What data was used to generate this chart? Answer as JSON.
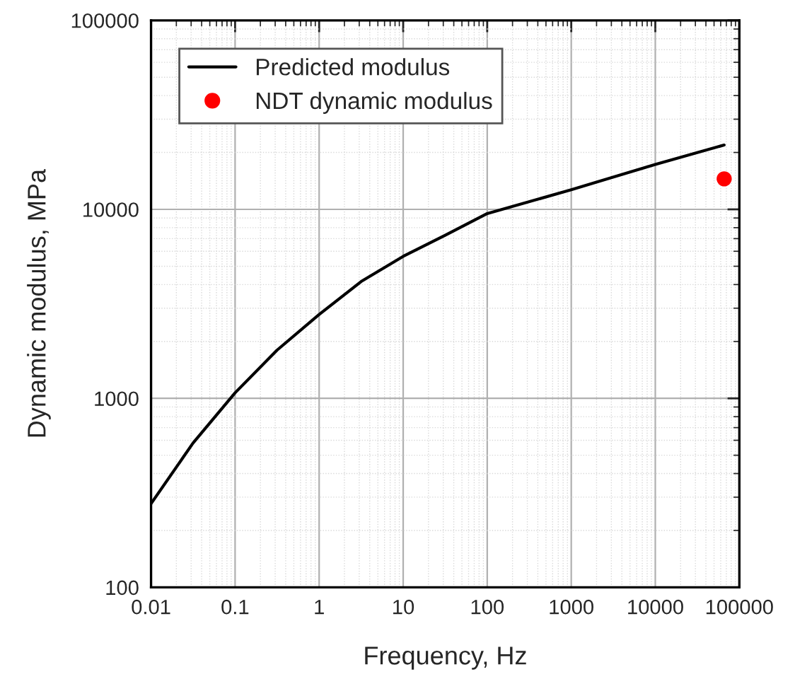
{
  "chart_data": {
    "type": "line",
    "xlabel": "Frequency, Hz",
    "ylabel": "Dynamic modulus, MPa",
    "log": "xy",
    "xlim": [
      0.01,
      100000
    ],
    "ylim": [
      100,
      100000
    ],
    "xticks": [
      0.01,
      0.1,
      1,
      10,
      100,
      1000,
      10000,
      100000
    ],
    "yticks": [
      100,
      1000,
      10000,
      100000
    ],
    "grid": true,
    "legend": "top left",
    "series": [
      {
        "name": "Predicted modulus",
        "color": "#000000",
        "marker": "none",
        "line_style": "solid",
        "x": [
          0.01,
          0.0316,
          0.1,
          0.316,
          1,
          3.16,
          10,
          31.6,
          100,
          1000,
          10000,
          66000
        ],
        "values": [
          277,
          580,
          1070,
          1800,
          2780,
          4150,
          5640,
          7300,
          9500,
          12700,
          17300,
          21900
        ]
      },
      {
        "name": "NDT dynamic modulus",
        "type": "scatter",
        "color": "#ff0000",
        "marker": "circle",
        "x": [
          66000
        ],
        "values": [
          14500
        ]
      }
    ]
  }
}
